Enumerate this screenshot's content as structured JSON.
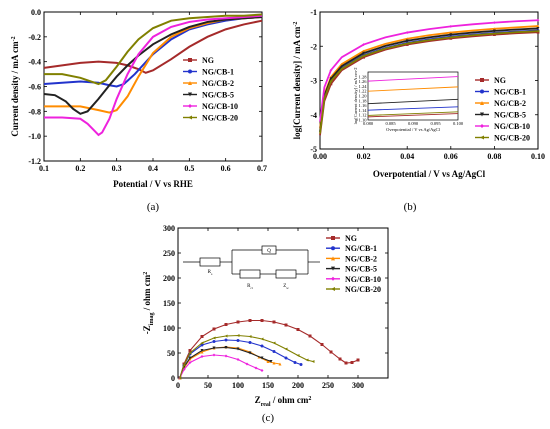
{
  "series_names": [
    "NG",
    "NG/CB-1",
    "NG/CB-2",
    "NG/CB-5",
    "NG/CB-10",
    "NG/CB-20"
  ],
  "colors": {
    "NG": "#a52a2a",
    "NG/CB-1": "#2233cc",
    "NG/CB-2": "#ff8c00",
    "NG/CB-5": "#222222",
    "NG/CB-10": "#ee22dd",
    "NG/CB-20": "#808000"
  },
  "chart_data": [
    {
      "id": "a",
      "type": "line",
      "panel_label": "(a)",
      "xlabel": "Potential / V vs RHE",
      "ylabel": "Current density / mA cm",
      "ylabel_sup": "-2",
      "xlim": [
        0.1,
        0.7
      ],
      "ylim": [
        -1.2,
        0.0
      ],
      "xticks": [
        0.1,
        0.2,
        0.3,
        0.4,
        0.5,
        0.6,
        0.7
      ],
      "xtick_labels": [
        "0.1",
        "0.2",
        "0.3",
        "0.4",
        "0.5",
        "0.6",
        "0.7"
      ],
      "yticks": [
        0.0,
        -0.2,
        -0.4,
        -0.6,
        -0.8,
        -1.0,
        -1.2
      ],
      "ytick_labels": [
        "0.0",
        "-0.2",
        "-0.4",
        "-0.6",
        "-0.8",
        "-1.0",
        "-1.2"
      ],
      "legend_position": "right",
      "series": [
        {
          "name": "NG",
          "x": [
            0.1,
            0.15,
            0.2,
            0.25,
            0.3,
            0.33,
            0.36,
            0.38,
            0.4,
            0.45,
            0.5,
            0.55,
            0.6,
            0.65,
            0.7
          ],
          "y": [
            -0.45,
            -0.43,
            -0.41,
            -0.4,
            -0.41,
            -0.43,
            -0.46,
            -0.49,
            -0.47,
            -0.38,
            -0.28,
            -0.2,
            -0.14,
            -0.1,
            -0.07
          ]
        },
        {
          "name": "NG/CB-1",
          "x": [
            0.1,
            0.15,
            0.2,
            0.25,
            0.28,
            0.3,
            0.32,
            0.35,
            0.4,
            0.45,
            0.5,
            0.55,
            0.6,
            0.65,
            0.7
          ],
          "y": [
            -0.58,
            -0.57,
            -0.56,
            -0.57,
            -0.59,
            -0.6,
            -0.58,
            -0.5,
            -0.34,
            -0.22,
            -0.14,
            -0.1,
            -0.07,
            -0.05,
            -0.04
          ]
        },
        {
          "name": "NG/CB-2",
          "x": [
            0.1,
            0.15,
            0.2,
            0.25,
            0.28,
            0.3,
            0.33,
            0.36,
            0.4,
            0.45,
            0.5,
            0.55,
            0.6,
            0.65,
            0.7
          ],
          "y": [
            -0.76,
            -0.76,
            -0.76,
            -0.79,
            -0.81,
            -0.79,
            -0.68,
            -0.52,
            -0.33,
            -0.2,
            -0.13,
            -0.09,
            -0.06,
            -0.05,
            -0.04
          ]
        },
        {
          "name": "NG/CB-5",
          "x": [
            0.1,
            0.13,
            0.16,
            0.18,
            0.2,
            0.22,
            0.25,
            0.28,
            0.3,
            0.33,
            0.36,
            0.4,
            0.45,
            0.5,
            0.55,
            0.6,
            0.65,
            0.7
          ],
          "y": [
            -0.66,
            -0.67,
            -0.72,
            -0.78,
            -0.82,
            -0.8,
            -0.7,
            -0.59,
            -0.52,
            -0.43,
            -0.35,
            -0.26,
            -0.18,
            -0.12,
            -0.08,
            -0.06,
            -0.05,
            -0.04
          ]
        },
        {
          "name": "NG/CB-10",
          "x": [
            0.1,
            0.15,
            0.2,
            0.22,
            0.24,
            0.25,
            0.26,
            0.28,
            0.3,
            0.33,
            0.36,
            0.4,
            0.45,
            0.5,
            0.55,
            0.6,
            0.65,
            0.7
          ],
          "y": [
            -0.85,
            -0.85,
            -0.86,
            -0.9,
            -0.96,
            -0.99,
            -0.97,
            -0.86,
            -0.7,
            -0.5,
            -0.34,
            -0.2,
            -0.12,
            -0.08,
            -0.06,
            -0.05,
            -0.04,
            -0.03
          ]
        },
        {
          "name": "NG/CB-20",
          "x": [
            0.1,
            0.15,
            0.2,
            0.23,
            0.25,
            0.27,
            0.3,
            0.33,
            0.36,
            0.4,
            0.45,
            0.5,
            0.55,
            0.6,
            0.65,
            0.7
          ],
          "y": [
            -0.5,
            -0.5,
            -0.53,
            -0.56,
            -0.58,
            -0.55,
            -0.44,
            -0.32,
            -0.22,
            -0.13,
            -0.07,
            -0.05,
            -0.04,
            -0.03,
            -0.03,
            -0.02
          ]
        }
      ]
    },
    {
      "id": "b",
      "type": "line",
      "panel_label": "(b)",
      "xlabel": "Overpotential / V vs Ag/AgCl",
      "ylabel": "log[Current density] / mA cm",
      "ylabel_sup": "-2",
      "xlim": [
        0.0,
        0.1
      ],
      "ylim": [
        -5,
        -1
      ],
      "xticks": [
        0.0,
        0.02,
        0.04,
        0.06,
        0.08,
        0.1
      ],
      "xtick_labels": [
        "0.00",
        "0.02",
        "0.04",
        "0.06",
        "0.08",
        "0.10"
      ],
      "yticks": [
        -1,
        -2,
        -3,
        -4,
        -5
      ],
      "ytick_labels": [
        "-1",
        "-2",
        "-3",
        "-4",
        "-5"
      ],
      "legend_position": "right",
      "series": [
        {
          "name": "NG",
          "x": [
            0.0,
            0.002,
            0.005,
            0.01,
            0.02,
            0.03,
            0.04,
            0.05,
            0.06,
            0.07,
            0.08,
            0.09,
            0.1
          ],
          "y": [
            -4.6,
            -3.6,
            -3.1,
            -2.7,
            -2.32,
            -2.1,
            -1.95,
            -1.85,
            -1.77,
            -1.71,
            -1.66,
            -1.62,
            -1.59
          ]
        },
        {
          "name": "NG/CB-1",
          "x": [
            0.0,
            0.002,
            0.005,
            0.01,
            0.02,
            0.03,
            0.04,
            0.05,
            0.06,
            0.07,
            0.08,
            0.09,
            0.1
          ],
          "y": [
            -4.5,
            -3.5,
            -3.0,
            -2.64,
            -2.26,
            -2.05,
            -1.9,
            -1.8,
            -1.72,
            -1.66,
            -1.61,
            -1.57,
            -1.54
          ]
        },
        {
          "name": "NG/CB-2",
          "x": [
            0.0,
            0.002,
            0.005,
            0.01,
            0.02,
            0.03,
            0.04,
            0.05,
            0.06,
            0.07,
            0.08,
            0.09,
            0.1
          ],
          "y": [
            -4.4,
            -3.4,
            -2.9,
            -2.52,
            -2.14,
            -1.93,
            -1.78,
            -1.68,
            -1.6,
            -1.54,
            -1.49,
            -1.45,
            -1.41
          ]
        },
        {
          "name": "NG/CB-5",
          "x": [
            0.0,
            0.002,
            0.005,
            0.01,
            0.02,
            0.03,
            0.04,
            0.05,
            0.06,
            0.07,
            0.08,
            0.09,
            0.1
          ],
          "y": [
            -4.5,
            -3.45,
            -2.95,
            -2.58,
            -2.2,
            -1.99,
            -1.84,
            -1.74,
            -1.66,
            -1.6,
            -1.55,
            -1.51,
            -1.48
          ]
        },
        {
          "name": "NG/CB-10",
          "x": [
            0.0,
            0.002,
            0.005,
            0.01,
            0.02,
            0.03,
            0.04,
            0.05,
            0.06,
            0.07,
            0.08,
            0.09,
            0.1
          ],
          "y": [
            -4.2,
            -3.2,
            -2.7,
            -2.32,
            -1.95,
            -1.74,
            -1.6,
            -1.5,
            -1.42,
            -1.36,
            -1.31,
            -1.27,
            -1.24
          ]
        },
        {
          "name": "NG/CB-20",
          "x": [
            0.0,
            0.002,
            0.005,
            0.01,
            0.02,
            0.03,
            0.04,
            0.05,
            0.06,
            0.07,
            0.08,
            0.09,
            0.1
          ],
          "y": [
            -4.55,
            -3.52,
            -3.02,
            -2.66,
            -2.28,
            -2.07,
            -1.92,
            -1.82,
            -1.74,
            -1.68,
            -1.63,
            -1.59,
            -1.56
          ]
        }
      ],
      "inset": {
        "xlabel": "Overpotential / V vs Ag/AgCl",
        "ylabel": "log[Current density] / mA cm-2",
        "xlim": [
          0.08,
          0.1
        ],
        "ylim": [
          1.1,
          1.3
        ],
        "xticks": [
          0.08,
          0.085,
          0.09,
          0.095,
          0.1
        ],
        "xtick_labels": [
          "0.080",
          "0.085",
          "0.090",
          "0.095",
          "0.100"
        ],
        "yticks": [
          1.1,
          1.12,
          1.14,
          1.16,
          1.18,
          1.2,
          1.22,
          1.24,
          1.26,
          1.28
        ],
        "ytick_labels": [
          "1.10",
          "1.12",
          "1.14",
          "1.16",
          "1.18",
          "1.20",
          "1.22",
          "1.24",
          "1.26",
          "1.28"
        ],
        "series": [
          {
            "name": "NG",
            "x": [
              0.08,
              0.1
            ],
            "y": [
              1.113,
              1.127
            ]
          },
          {
            "name": "NG/CB-1",
            "x": [
              0.08,
              0.1
            ],
            "y": [
              1.141,
              1.155
            ]
          },
          {
            "name": "NG/CB-2",
            "x": [
              0.08,
              0.1
            ],
            "y": [
              1.22,
              1.238
            ]
          },
          {
            "name": "NG/CB-5",
            "x": [
              0.08,
              0.1
            ],
            "y": [
              1.168,
              1.186
            ]
          },
          {
            "name": "NG/CB-10",
            "x": [
              0.08,
              0.1
            ],
            "y": [
              1.262,
              1.281
            ]
          },
          {
            "name": "NG/CB-20",
            "x": [
              0.08,
              0.1
            ],
            "y": [
              1.119,
              1.134
            ]
          }
        ]
      }
    },
    {
      "id": "c",
      "type": "scatter",
      "panel_label": "(c)",
      "xlabel": "Z",
      "xlabel_sub": "real",
      "xlabel_tail": " / ohm cm",
      "xlabel_sup": "2",
      "ylabel": "-Z",
      "ylabel_sub": "imag",
      "ylabel_tail": " / ohm cm",
      "ylabel_sup": "2",
      "xlim": [
        0,
        350
      ],
      "ylim": [
        0,
        300
      ],
      "xticks": [
        0,
        50,
        100,
        150,
        200,
        250,
        300
      ],
      "xtick_labels": [
        "0",
        "50",
        "100",
        "150",
        "200",
        "250",
        "300"
      ],
      "yticks": [
        0,
        50,
        100,
        150,
        200,
        250,
        300
      ],
      "ytick_labels": [
        "0",
        "50",
        "100",
        "150",
        "200",
        "250",
        "300"
      ],
      "legend_position": "right",
      "circuit_labels": [
        "R",
        "s",
        "Q",
        "R",
        "ct",
        "Z",
        "w"
      ],
      "series": [
        {
          "name": "NG",
          "x": [
            3,
            10,
            20,
            40,
            60,
            80,
            100,
            120,
            140,
            160,
            180,
            200,
            220,
            240,
            255,
            270,
            280,
            290,
            300
          ],
          "y": [
            0,
            28,
            55,
            83,
            98,
            107,
            112,
            115,
            115,
            112,
            106,
            97,
            84,
            67,
            52,
            38,
            30,
            31,
            36
          ]
        },
        {
          "name": "NG/CB-1",
          "x": [
            3,
            10,
            20,
            40,
            60,
            80,
            100,
            120,
            140,
            160,
            180,
            195,
            205
          ],
          "y": [
            0,
            25,
            48,
            66,
            73,
            76,
            75,
            71,
            64,
            53,
            40,
            31,
            27
          ]
        },
        {
          "name": "NG/CB-2",
          "x": [
            3,
            10,
            20,
            40,
            60,
            80,
            100,
            120,
            135,
            150,
            160,
            170
          ],
          "y": [
            0,
            20,
            38,
            52,
            60,
            62,
            60,
            52,
            42,
            33,
            30,
            28
          ]
        },
        {
          "name": "NG/CB-5",
          "x": [
            3,
            10,
            20,
            40,
            60,
            80,
            100,
            120,
            140,
            155
          ],
          "y": [
            0,
            22,
            40,
            55,
            60,
            61,
            58,
            50,
            40,
            33
          ]
        },
        {
          "name": "NG/CB-10",
          "x": [
            3,
            10,
            20,
            40,
            60,
            80,
            100,
            115,
            130,
            140
          ],
          "y": [
            0,
            17,
            31,
            43,
            46,
            44,
            37,
            28,
            20,
            15
          ]
        },
        {
          "name": "NG/CB-20",
          "x": [
            3,
            10,
            20,
            40,
            60,
            80,
            100,
            120,
            140,
            160,
            180,
            200,
            215,
            225
          ],
          "y": [
            0,
            26,
            50,
            70,
            80,
            84,
            85,
            83,
            78,
            70,
            58,
            45,
            36,
            33
          ]
        }
      ]
    }
  ]
}
